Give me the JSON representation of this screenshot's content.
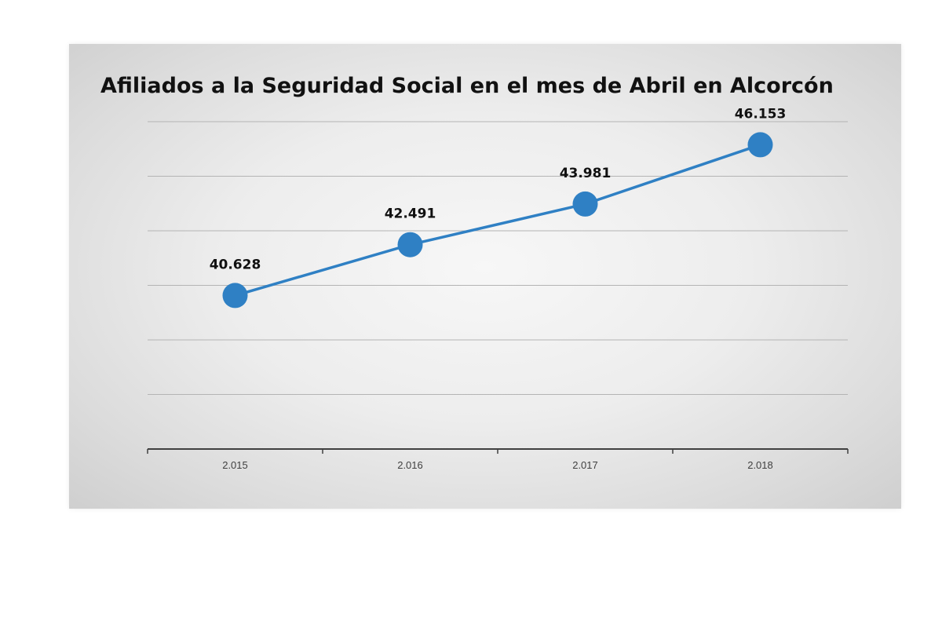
{
  "chart_data": {
    "type": "line",
    "title": "Afiliados a la Seguridad Social en el mes de Abril en Alcorcón",
    "xlabel": "",
    "ylabel": "",
    "categories": [
      "2.015",
      "2.016",
      "2.017",
      "2.018"
    ],
    "series": [
      {
        "values": [
          40628,
          42491,
          43981,
          46153
        ],
        "labels": [
          "40.628",
          "42.491",
          "43.981",
          "46.153"
        ]
      }
    ],
    "ylim": [
      35000,
      47000
    ],
    "grid": true,
    "y_tick_labels_shown": false,
    "legend": "none",
    "colors": {
      "line": "#2f80c4",
      "marker": "#2f80c4",
      "gridline": "#b4b4b4",
      "axis": "#404040",
      "tick_label": "#404040",
      "data_label": "#111111"
    }
  }
}
